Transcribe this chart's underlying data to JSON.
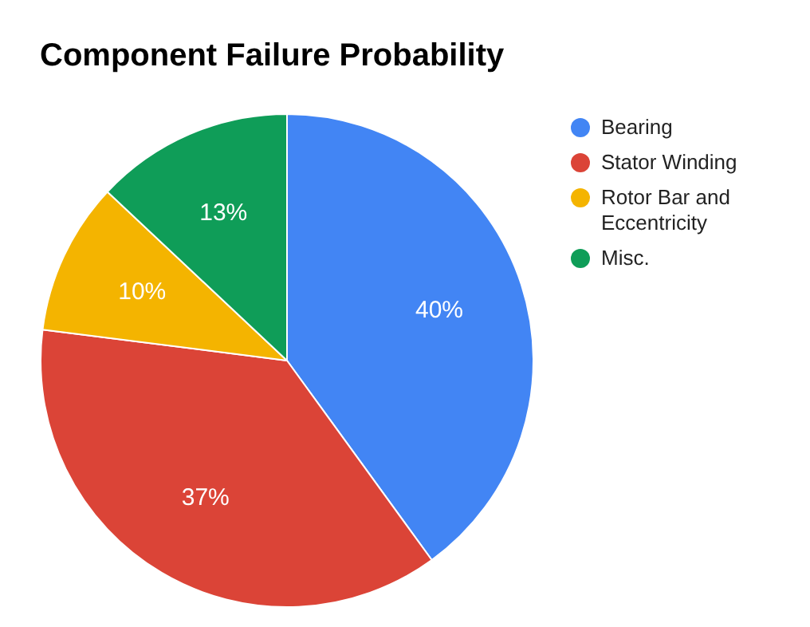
{
  "chart_data": {
    "type": "pie",
    "title": "Component Failure Probability",
    "categories": [
      "Bearing",
      "Stator Winding",
      "Rotor Bar and Eccentricity",
      "Misc."
    ],
    "values": [
      40,
      37,
      10,
      13
    ],
    "colors": [
      "#4285f4",
      "#db4437",
      "#f4b400",
      "#0f9d58"
    ],
    "value_labels": [
      "40%",
      "37%",
      "10%",
      "13%"
    ],
    "legend": "right"
  }
}
